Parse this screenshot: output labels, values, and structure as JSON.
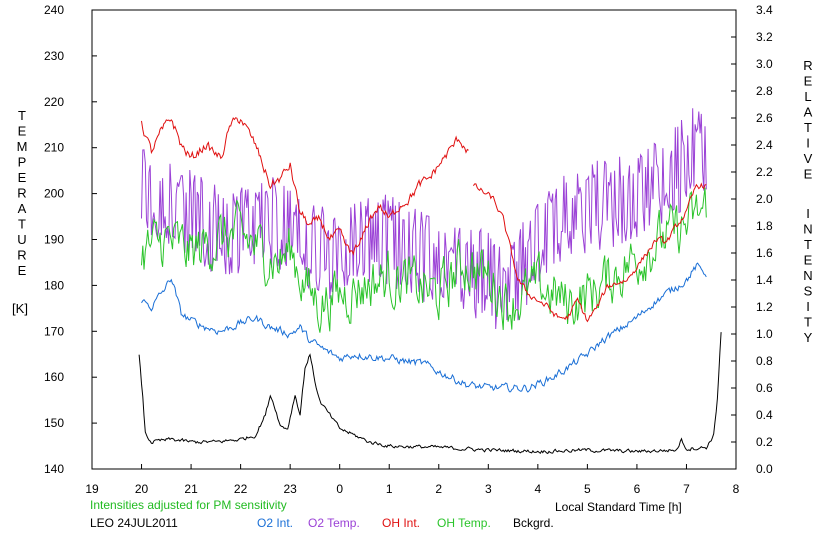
{
  "chart_data": {
    "type": "line",
    "note": "Intensities adjusted for PM sensitivity",
    "station": "LEO 24JUL2011",
    "xlabel": "Local Standard Time [h]",
    "ylabel_left_letters": [
      "T",
      "E",
      "M",
      "P",
      "E",
      "R",
      "A",
      "T",
      "U",
      "R",
      "E"
    ],
    "ylabel_left_unit": "[K]",
    "ylabel_right_letters": [
      "R",
      "E",
      "L",
      "A",
      "T",
      "I",
      "V",
      "E"
    ],
    "ylabel_right_letters2": [
      "I",
      "N",
      "T",
      "E",
      "N",
      "S",
      "I",
      "T",
      "Y"
    ],
    "x_range": [
      19,
      32
    ],
    "x_tick_labels": [
      "19",
      "20",
      "21",
      "22",
      "23",
      "0",
      "1",
      "2",
      "3",
      "4",
      "5",
      "6",
      "7",
      "8"
    ],
    "ylim_left": [
      140,
      240
    ],
    "y_left_ticks": [
      "140",
      "150",
      "160",
      "170",
      "180",
      "190",
      "200",
      "210",
      "220",
      "230",
      "240"
    ],
    "ylim_right": [
      0.0,
      3.4
    ],
    "y_right_ticks": [
      "0.0",
      "0.2",
      "0.4",
      "0.6",
      "0.8",
      "1.0",
      "1.2",
      "1.4",
      "1.6",
      "1.8",
      "2.0",
      "2.2",
      "2.4",
      "2.6",
      "2.8",
      "3.0",
      "3.2",
      "3.4"
    ],
    "colors": {
      "o2int": "#1a6fd6",
      "o2temp": "#9b42d6",
      "ohint": "#e01010",
      "ohtemp": "#2bc42b",
      "bckgrd": "#000000",
      "note": "#22bb22"
    },
    "series": [
      {
        "name": "O2 Int.",
        "axis": "right",
        "noise": 0.025,
        "points": [
          [
            20.0,
            1.25
          ],
          [
            20.2,
            1.2
          ],
          [
            20.5,
            1.35
          ],
          [
            20.6,
            1.42
          ],
          [
            20.8,
            1.15
          ],
          [
            21.0,
            1.1
          ],
          [
            21.3,
            1.05
          ],
          [
            21.6,
            1.02
          ],
          [
            22.0,
            1.08
          ],
          [
            22.3,
            1.12
          ],
          [
            22.6,
            1.05
          ],
          [
            23.0,
            1.0
          ],
          [
            23.2,
            1.05
          ],
          [
            23.4,
            0.95
          ],
          [
            23.7,
            0.88
          ],
          [
            24.0,
            0.82
          ],
          [
            24.3,
            0.85
          ],
          [
            24.7,
            0.83
          ],
          [
            25.0,
            0.82
          ],
          [
            25.3,
            0.8
          ],
          [
            25.7,
            0.78
          ],
          [
            26.0,
            0.72
          ],
          [
            26.3,
            0.67
          ],
          [
            26.6,
            0.62
          ],
          [
            27.0,
            0.6
          ],
          [
            27.4,
            0.6
          ],
          [
            27.8,
            0.6
          ],
          [
            28.0,
            0.63
          ],
          [
            28.3,
            0.68
          ],
          [
            28.6,
            0.75
          ],
          [
            29.0,
            0.85
          ],
          [
            29.3,
            0.95
          ],
          [
            29.6,
            1.02
          ],
          [
            30.0,
            1.12
          ],
          [
            30.3,
            1.22
          ],
          [
            30.6,
            1.3
          ],
          [
            31.0,
            1.4
          ],
          [
            31.2,
            1.5
          ],
          [
            31.4,
            1.45
          ]
        ]
      },
      {
        "name": "O2 Temp.",
        "axis": "left",
        "noise": 10,
        "points": [
          [
            20.0,
            202
          ],
          [
            20.5,
            198
          ],
          [
            21.0,
            195
          ],
          [
            21.5,
            192
          ],
          [
            22.0,
            192
          ],
          [
            22.5,
            194
          ],
          [
            23.0,
            193
          ],
          [
            23.5,
            188
          ],
          [
            24.0,
            186
          ],
          [
            24.5,
            190
          ],
          [
            25.0,
            190
          ],
          [
            25.5,
            187
          ],
          [
            26.0,
            185
          ],
          [
            26.5,
            183
          ],
          [
            27.0,
            182
          ],
          [
            27.3,
            178
          ],
          [
            27.6,
            182
          ],
          [
            28.0,
            190
          ],
          [
            28.5,
            195
          ],
          [
            29.0,
            197
          ],
          [
            29.5,
            198
          ],
          [
            30.0,
            200
          ],
          [
            30.5,
            203
          ],
          [
            31.0,
            207
          ],
          [
            31.2,
            210
          ],
          [
            31.4,
            209
          ]
        ]
      },
      {
        "name": "OH Int.",
        "axis": "right",
        "noise": 0.03,
        "points": [
          [
            20.0,
            2.55
          ],
          [
            20.2,
            2.35
          ],
          [
            20.4,
            2.5
          ],
          [
            20.6,
            2.6
          ],
          [
            20.8,
            2.4
          ],
          [
            21.0,
            2.3
          ],
          [
            21.3,
            2.4
          ],
          [
            21.6,
            2.3
          ],
          [
            21.8,
            2.55
          ],
          [
            22.0,
            2.6
          ],
          [
            22.3,
            2.4
          ],
          [
            22.6,
            2.1
          ],
          [
            22.8,
            2.15
          ],
          [
            23.0,
            2.25
          ],
          [
            23.2,
            1.9
          ],
          [
            23.4,
            1.8
          ],
          [
            23.6,
            1.85
          ],
          [
            23.8,
            1.7
          ],
          [
            24.0,
            1.75
          ],
          [
            24.2,
            1.6
          ],
          [
            24.4,
            1.65
          ],
          [
            24.6,
            1.85
          ],
          [
            24.8,
            1.95
          ],
          [
            25.0,
            1.85
          ],
          [
            25.2,
            1.95
          ],
          [
            25.4,
            2.0
          ],
          [
            25.6,
            2.1
          ],
          [
            25.8,
            2.15
          ],
          [
            26.0,
            2.25
          ],
          [
            26.2,
            2.35
          ],
          [
            26.4,
            2.45
          ],
          [
            26.5,
            2.4
          ],
          [
            26.6,
            2.35
          ]
        ]
      },
      {
        "name": "OH Int.",
        "axis": "right",
        "noise": 0.02,
        "points": [
          [
            26.7,
            2.1
          ],
          [
            26.9,
            2.05
          ],
          [
            27.1,
            2.0
          ],
          [
            27.3,
            1.85
          ],
          [
            27.4,
            1.7
          ],
          [
            27.6,
            1.4
          ],
          [
            27.8,
            1.3
          ],
          [
            28.0,
            1.25
          ],
          [
            28.2,
            1.2
          ],
          [
            28.4,
            1.12
          ],
          [
            28.6,
            1.12
          ],
          [
            28.8,
            1.25
          ],
          [
            29.0,
            1.1
          ],
          [
            29.2,
            1.2
          ],
          [
            29.4,
            1.35
          ],
          [
            29.6,
            1.38
          ],
          [
            29.8,
            1.4
          ],
          [
            30.0,
            1.5
          ],
          [
            30.2,
            1.6
          ],
          [
            30.4,
            1.7
          ],
          [
            30.6,
            1.68
          ],
          [
            30.8,
            1.8
          ],
          [
            31.0,
            1.9
          ],
          [
            31.2,
            2.1
          ],
          [
            31.4,
            2.1
          ]
        ]
      },
      {
        "name": "OH Temp.",
        "axis": "left",
        "noise": 5,
        "points": [
          [
            20.0,
            187
          ],
          [
            20.5,
            190
          ],
          [
            21.0,
            187
          ],
          [
            21.5,
            190
          ],
          [
            22.0,
            191
          ],
          [
            22.5,
            187
          ],
          [
            22.8,
            185
          ],
          [
            23.0,
            188
          ],
          [
            23.3,
            180
          ],
          [
            23.6,
            176
          ],
          [
            24.0,
            178
          ],
          [
            24.5,
            180
          ],
          [
            25.0,
            182
          ],
          [
            25.5,
            180
          ],
          [
            26.0,
            178
          ],
          [
            26.5,
            185
          ],
          [
            27.0,
            182
          ],
          [
            27.4,
            176
          ],
          [
            27.8,
            178
          ],
          [
            28.0,
            180
          ],
          [
            28.3,
            178
          ],
          [
            28.6,
            176
          ],
          [
            29.0,
            178
          ],
          [
            29.5,
            182
          ],
          [
            30.0,
            186
          ],
          [
            30.5,
            190
          ],
          [
            31.0,
            193
          ],
          [
            31.4,
            197
          ]
        ]
      },
      {
        "name": "Bckgrd.",
        "axis": "right",
        "noise": 0.012,
        "points": [
          [
            19.95,
            0.84
          ],
          [
            20.02,
            0.55
          ],
          [
            20.08,
            0.25
          ],
          [
            20.2,
            0.2
          ],
          [
            20.6,
            0.22
          ],
          [
            21.0,
            0.2
          ],
          [
            21.5,
            0.2
          ],
          [
            22.0,
            0.22
          ],
          [
            22.3,
            0.25
          ],
          [
            22.5,
            0.4
          ],
          [
            22.6,
            0.55
          ],
          [
            22.7,
            0.45
          ],
          [
            22.8,
            0.32
          ],
          [
            22.95,
            0.3
          ],
          [
            23.1,
            0.55
          ],
          [
            23.2,
            0.4
          ],
          [
            23.3,
            0.75
          ],
          [
            23.4,
            0.85
          ],
          [
            23.5,
            0.65
          ],
          [
            23.6,
            0.5
          ],
          [
            23.8,
            0.4
          ],
          [
            24.0,
            0.3
          ],
          [
            24.3,
            0.25
          ],
          [
            24.6,
            0.2
          ],
          [
            25.0,
            0.17
          ],
          [
            26.0,
            0.16
          ],
          [
            27.0,
            0.14
          ],
          [
            28.0,
            0.13
          ],
          [
            29.0,
            0.14
          ],
          [
            30.0,
            0.13
          ],
          [
            30.8,
            0.14
          ],
          [
            30.9,
            0.22
          ],
          [
            31.0,
            0.15
          ],
          [
            31.4,
            0.16
          ],
          [
            31.55,
            0.25
          ],
          [
            31.62,
            0.5
          ],
          [
            31.68,
            0.9
          ],
          [
            31.72,
            1.12
          ]
        ]
      }
    ]
  }
}
